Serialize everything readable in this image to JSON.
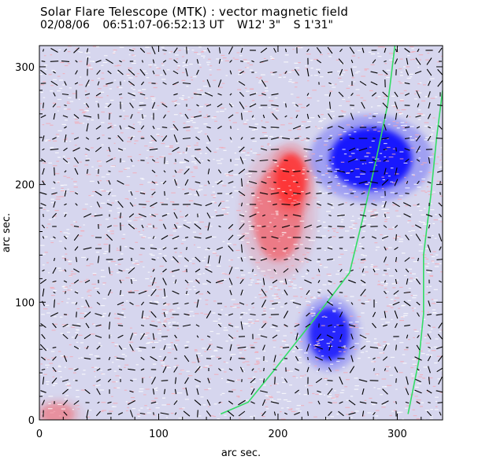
{
  "figure": {
    "title": "Solar Flare Telescope (MTK) : vector magnetic field",
    "date": "02/08/06",
    "time_range": "06:51:07-06:52:13 UT",
    "coord_w": "W12' 3\"",
    "coord_s": "S 1'31\""
  },
  "axes": {
    "xlabel": "arc sec.",
    "ylabel": "arc sec.",
    "x_ticks": [
      0,
      100,
      200,
      300
    ],
    "y_ticks": [
      0,
      100,
      200,
      300
    ],
    "xlim": [
      0,
      338
    ],
    "ylim": [
      0,
      318
    ]
  },
  "colors": {
    "background": "#d6d6ee",
    "positive_polarity": "#ff3030",
    "negative_polarity": "#0000ff",
    "neutral_line": "#33dd66",
    "vectors": "#000000"
  },
  "chart_data": {
    "type": "magnetogram",
    "polarity_regions": [
      {
        "name": "positive-spot",
        "sign": "positive",
        "x": 211,
        "y": 204,
        "strength": 1.0
      },
      {
        "name": "positive-plage",
        "sign": "positive",
        "x": 200,
        "y": 175,
        "strength": 0.55
      },
      {
        "name": "negative-spot-north",
        "sign": "negative",
        "x": 278,
        "y": 222,
        "strength": 1.0
      },
      {
        "name": "negative-spot-south",
        "sign": "negative",
        "x": 243,
        "y": 73,
        "strength": 0.9
      },
      {
        "name": "positive-corner",
        "sign": "positive",
        "x": 15,
        "y": 5,
        "strength": 0.4
      }
    ],
    "neutral_lines": [
      [
        [
          152,
          5
        ],
        [
          175,
          15
        ],
        [
          195,
          40
        ],
        [
          230,
          85
        ],
        [
          260,
          125
        ],
        [
          272,
          175
        ],
        [
          282,
          220
        ],
        [
          292,
          268
        ],
        [
          298,
          318
        ]
      ],
      [
        [
          309,
          5
        ],
        [
          318,
          50
        ],
        [
          322,
          90
        ],
        [
          322,
          140
        ],
        [
          328,
          190
        ],
        [
          333,
          240
        ],
        [
          338,
          280
        ]
      ]
    ]
  }
}
